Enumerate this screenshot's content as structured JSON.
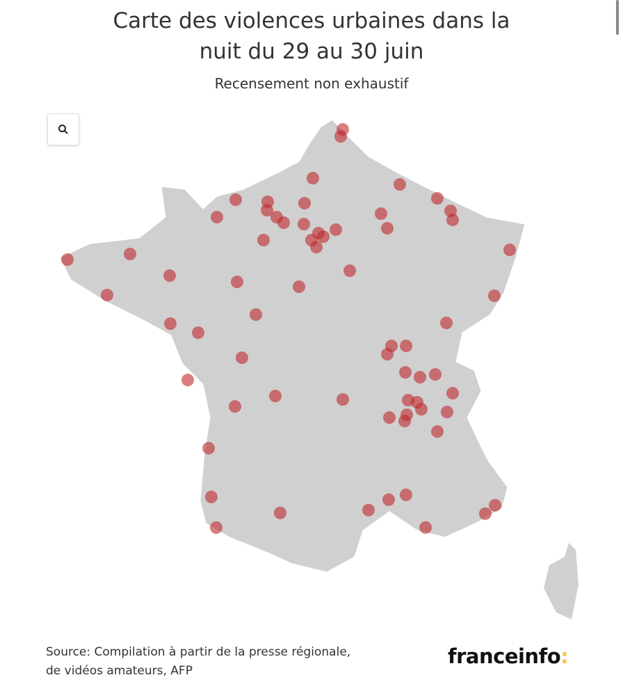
{
  "title_line1": "Carte des violences urbaines dans la",
  "title_line2": "nuit du 29 au 30 juin",
  "subtitle": "Recensement non exhaustif",
  "zoom_button_icon": "search-icon",
  "source_line1": "Source: Compilation à partir de la presse régionale,",
  "source_line2": "de vidéos amateurs, AFP",
  "logo": "franceinfo",
  "logo_colon": ":",
  "colors": {
    "land": "#d0d0d0",
    "border": "#ffffff",
    "marker": "#c0282d",
    "logo_accent": "#f5c542"
  }
}
